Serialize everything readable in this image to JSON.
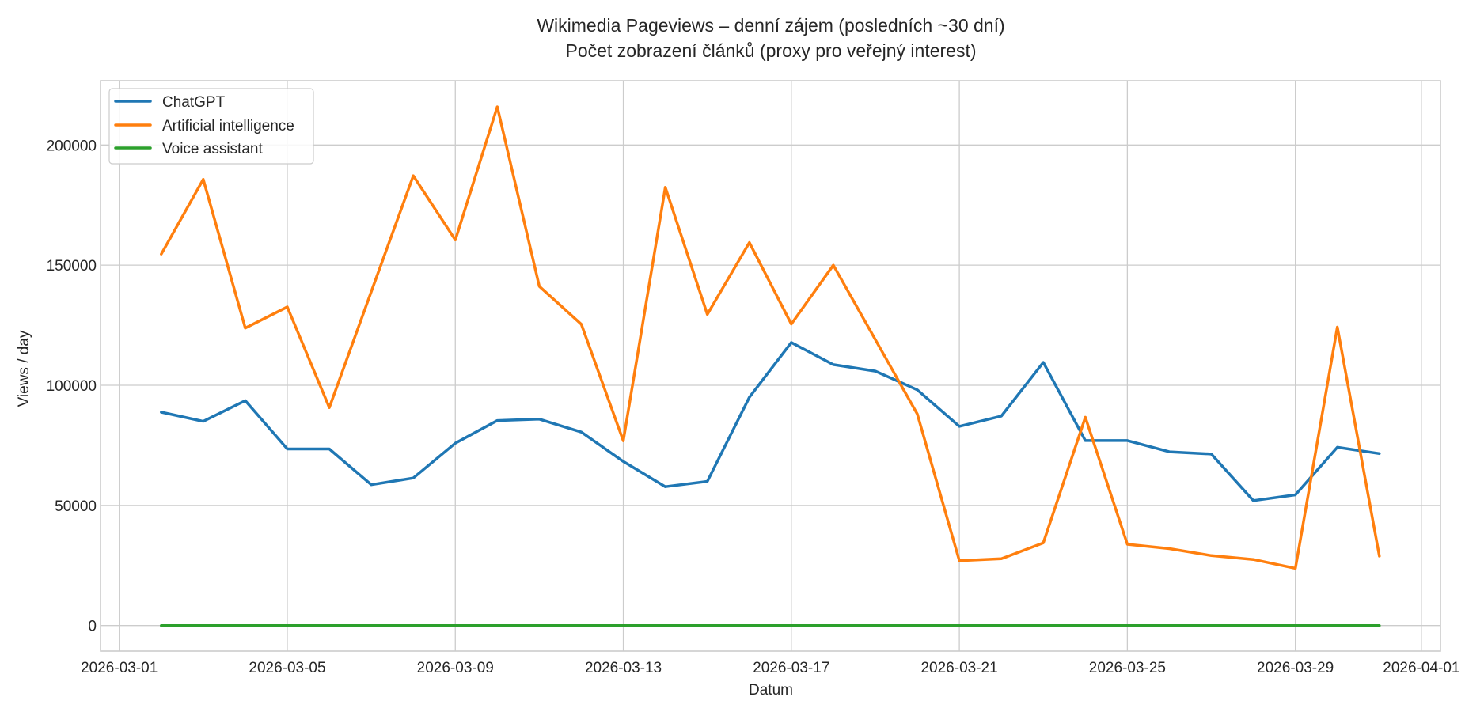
{
  "chart_data": {
    "type": "line",
    "title": "Wikimedia Pageviews – denní zájem (posledních ~30 dní)",
    "subtitle": "Počet zobrazení článků (proxy pro veřejný interest)",
    "xlabel": "Datum",
    "ylabel": "Views / day",
    "ylim": [
      -8500,
      226000
    ],
    "xlim": [
      "2026-02-29.6",
      "2026-04-01.4"
    ],
    "grid": true,
    "legend_position": "upper left",
    "x_ticks": [
      "2026-03-01",
      "2026-03-05",
      "2026-03-09",
      "2026-03-13",
      "2026-03-17",
      "2026-03-21",
      "2026-03-25",
      "2026-03-29",
      "2026-04-01"
    ],
    "y_ticks": [
      0,
      50000,
      100000,
      150000,
      200000
    ],
    "x": [
      "2026-03-02",
      "2026-03-03",
      "2026-03-04",
      "2026-03-05",
      "2026-03-06",
      "2026-03-07",
      "2026-03-08",
      "2026-03-09",
      "2026-03-10",
      "2026-03-11",
      "2026-03-12",
      "2026-03-13",
      "2026-03-14",
      "2026-03-15",
      "2026-03-16",
      "2026-03-17",
      "2026-03-18",
      "2026-03-19",
      "2026-03-20",
      "2026-03-21",
      "2026-03-22",
      "2026-03-23",
      "2026-03-24",
      "2026-03-25",
      "2026-03-26",
      "2026-03-27",
      "2026-03-28",
      "2026-03-29",
      "2026-03-30",
      "2026-03-31"
    ],
    "series": [
      {
        "name": "ChatGPT",
        "color": "#1f77b4",
        "values": [
          88800,
          85000,
          93600,
          73500,
          73500,
          58600,
          61400,
          75900,
          85300,
          85900,
          80500,
          68300,
          57800,
          60000,
          95000,
          117800,
          108600,
          105900,
          98100,
          82900,
          87200,
          109500,
          77000,
          77000,
          72300,
          71400,
          52000,
          54400,
          74200,
          71600
        ]
      },
      {
        "name": "Artificial intelligence",
        "color": "#ff7f0e",
        "values": [
          154600,
          185700,
          123800,
          132600,
          90700,
          139000,
          187200,
          160500,
          215900,
          141200,
          125400,
          76900,
          182400,
          129500,
          159400,
          125500,
          150000,
          119000,
          88000,
          27000,
          27800,
          34400,
          86700,
          33800,
          32000,
          29100,
          27500,
          23800,
          124200,
          28900
        ]
      },
      {
        "name": "Voice assistant",
        "color": "#2ca02c",
        "values": [
          0,
          0,
          0,
          0,
          0,
          0,
          0,
          0,
          0,
          0,
          0,
          0,
          0,
          0,
          0,
          0,
          0,
          0,
          0,
          0,
          0,
          0,
          0,
          0,
          0,
          0,
          0,
          0,
          0,
          0
        ]
      }
    ]
  },
  "titles": {
    "line1": "Wikimedia Pageviews – denní zájem (posledních ~30 dní)",
    "line2": "Počet zobrazení článků (proxy pro veřejný interest)"
  },
  "axes": {
    "xlabel": "Datum",
    "ylabel": "Views / day",
    "x_tick_labels": [
      "2026-03-01",
      "2026-03-05",
      "2026-03-09",
      "2026-03-13",
      "2026-03-17",
      "2026-03-21",
      "2026-03-25",
      "2026-03-29",
      "2026-04-01"
    ],
    "y_tick_labels": [
      "0",
      "50000",
      "100000",
      "150000",
      "200000"
    ]
  },
  "legend": {
    "items": [
      {
        "label": "ChatGPT",
        "color": "#1f77b4"
      },
      {
        "label": "Artificial intelligence",
        "color": "#ff7f0e"
      },
      {
        "label": "Voice assistant",
        "color": "#2ca02c"
      }
    ]
  },
  "style": {
    "grid_color": "#cccccc",
    "spine_color": "#cccccc",
    "text_color": "#262626"
  }
}
